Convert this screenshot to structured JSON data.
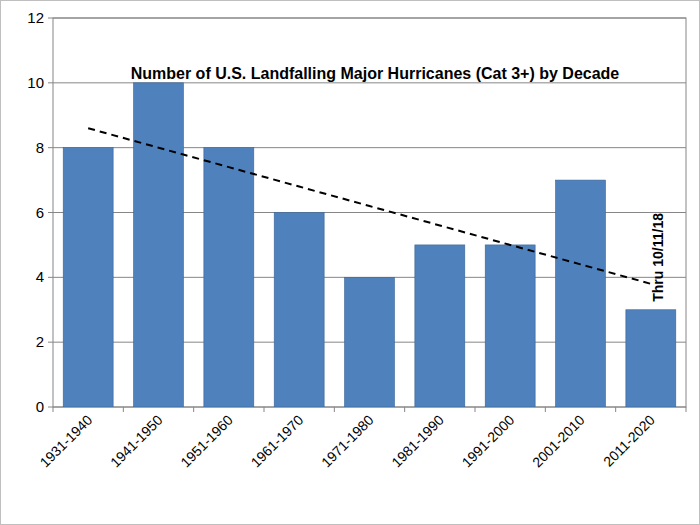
{
  "chart_data": {
    "type": "bar",
    "title": "Number of U.S. Landfalling Major Hurricanes (Cat 3+) by Decade",
    "categories": [
      "1931-1940",
      "1941-1950",
      "1951-1960",
      "1961-1970",
      "1971-1980",
      "1981-1990",
      "1991-2000",
      "2001-2010",
      "2011-2020"
    ],
    "series": [
      {
        "type": "bar",
        "color": "#4f81bd",
        "values": [
          8,
          10,
          8,
          6,
          4,
          5,
          5,
          7,
          3
        ]
      },
      {
        "type": "line",
        "color": "#000000",
        "line_style": "dashed",
        "values": [
          8.6,
          8.0,
          7.4,
          6.8,
          6.2,
          5.6,
          5.0,
          4.4,
          3.8
        ]
      }
    ],
    "annotations": [
      "Thru 10/11/18"
    ],
    "ylim": [
      0,
      12
    ],
    "yticks": [
      0,
      2,
      4,
      6,
      8,
      10,
      12
    ],
    "grid": true
  }
}
